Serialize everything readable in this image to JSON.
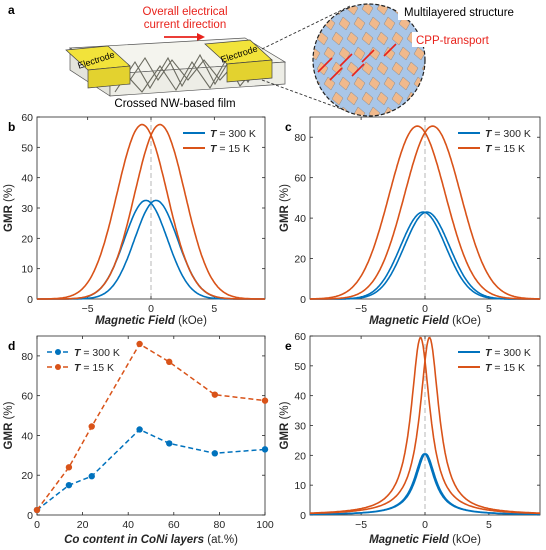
{
  "colors": {
    "blue": "#0072BD",
    "orange": "#D95319",
    "electrode": "#F2E33A",
    "layer_orange": "#F0B98C",
    "layer_blue": "#A9C6E8",
    "arrow_red": "#E8231C"
  },
  "schematic": {
    "panel_letter": "a",
    "current_label_line1": "Overall electrical",
    "current_label_line2": "current direction",
    "electrode_left": "Electrode",
    "electrode_right": "Electrode",
    "film_label": "Crossed NW-based film",
    "multilayer_label": "Multilayered structure",
    "cpp_label": "CPP-transport"
  },
  "chart_data": [
    {
      "panel": "b",
      "type": "line",
      "xlabel": "Magnetic Field (kOe)",
      "ylabel": "GMR (%)",
      "xlim": [
        -9,
        9
      ],
      "ylim": [
        0,
        60
      ],
      "xticks": [
        -5,
        0,
        5
      ],
      "yticks": [
        0,
        10,
        20,
        30,
        40,
        50,
        60
      ],
      "legend_position": "top-right",
      "zero_line": true,
      "series": [
        {
          "name": "T = 300 K",
          "color": "blue",
          "shape": "gaussian",
          "peak": 32.5,
          "center_up": -0.4,
          "center_down": 0.4,
          "width": 2.4
        },
        {
          "name": "T = 15 K",
          "color": "orange",
          "shape": "gaussian",
          "peak": 57.5,
          "center_up": -0.7,
          "center_down": 0.7,
          "width": 2.8
        }
      ]
    },
    {
      "panel": "c",
      "type": "line",
      "xlabel": "Magnetic Field (kOe)",
      "ylabel": "GMR (%)",
      "xlim": [
        -9,
        9
      ],
      "ylim": [
        0,
        90
      ],
      "xticks": [
        -5,
        0,
        5
      ],
      "yticks": [
        0,
        20,
        40,
        60,
        80
      ],
      "legend_position": "top-right",
      "zero_line": true,
      "series": [
        {
          "name": "T = 300 K",
          "color": "blue",
          "shape": "gaussian",
          "peak": 43,
          "center_up": -0.15,
          "center_down": 0.15,
          "width": 2.5
        },
        {
          "name": "T = 15 K",
          "color": "orange",
          "shape": "gaussian",
          "peak": 85.5,
          "center_up": -0.6,
          "center_down": 0.6,
          "width": 3.1
        }
      ]
    },
    {
      "panel": "d",
      "type": "scatter",
      "xlabel": "Co content in CoNi layers (at.%)",
      "ylabel": "GMR (%)",
      "xlim": [
        0,
        100
      ],
      "ylim": [
        0,
        90
      ],
      "xticks": [
        0,
        20,
        40,
        60,
        80,
        100
      ],
      "yticks": [
        0,
        20,
        40,
        60,
        80
      ],
      "legend_position": "top-left",
      "series": [
        {
          "name": "T = 300 K",
          "color": "blue",
          "x": [
            0,
            14,
            24,
            45,
            58,
            78,
            100
          ],
          "y": [
            2.5,
            15,
            19.5,
            43,
            36,
            31,
            33
          ]
        },
        {
          "name": "T = 15 K",
          "color": "orange",
          "x": [
            0,
            14,
            24,
            45,
            58,
            78,
            100
          ],
          "y": [
            2.5,
            24,
            44.5,
            86,
            77,
            60.5,
            57.5
          ]
        }
      ]
    },
    {
      "panel": "e",
      "type": "line",
      "xlabel": "Magnetic Field (kOe)",
      "ylabel": "GMR (%)",
      "xlim": [
        -9,
        9
      ],
      "ylim": [
        0,
        60
      ],
      "xticks": [
        -5,
        0,
        5
      ],
      "yticks": [
        0,
        10,
        20,
        30,
        40,
        50,
        60
      ],
      "legend_position": "top-right",
      "zero_line": true,
      "series": [
        {
          "name": "T = 300 K",
          "color": "blue",
          "shape": "lorentzian",
          "peak": 20.5,
          "center_up": -0.05,
          "center_down": 0.05,
          "width": 0.95
        },
        {
          "name": "T = 15 K",
          "color": "orange",
          "shape": "lorentzian",
          "peak": 59.5,
          "center_up": -0.35,
          "center_down": 0.35,
          "width": 0.9
        }
      ]
    }
  ]
}
